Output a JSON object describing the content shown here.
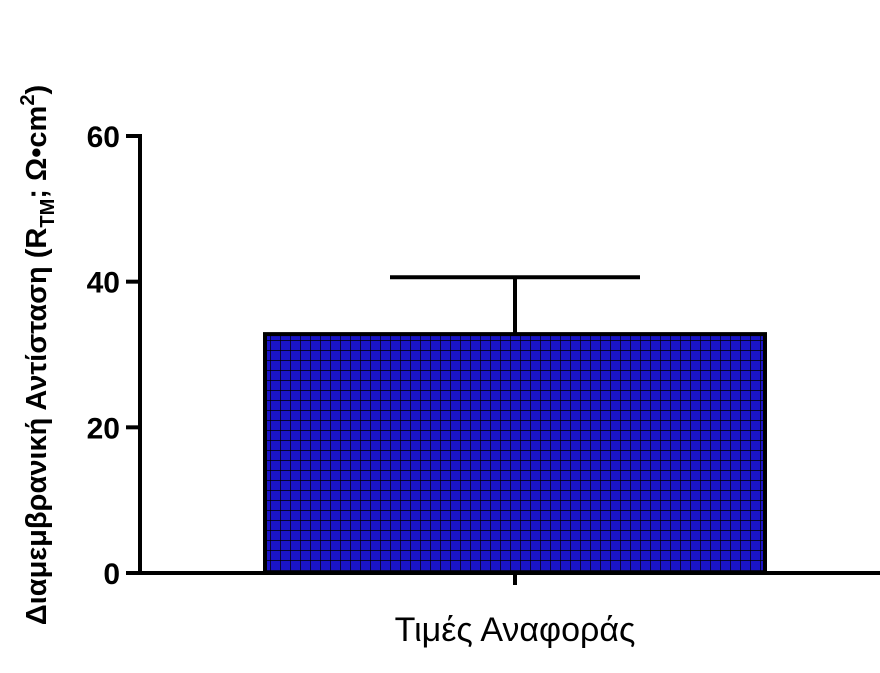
{
  "chart_data": {
    "type": "bar",
    "categories": [
      "Τιμές Αναφοράς"
    ],
    "values": [
      32.8
    ],
    "error": [
      7.8
    ],
    "ylabel": "Διαμεμβρανική Αντίσταση (R",
    "ylabel_sub": "TM",
    "ylabel_tail": "; Ω•cm",
    "ylabel_sup": "2",
    "ylabel_close": ")",
    "ylim": [
      0,
      60
    ],
    "yticks": [
      0,
      20,
      40,
      60
    ],
    "ytick_labels": [
      "0",
      "20",
      "40",
      "60"
    ],
    "grid": false,
    "bar_color": "#1a14c8",
    "bar_pattern_color": "#000000",
    "bar_pattern": "grid"
  }
}
